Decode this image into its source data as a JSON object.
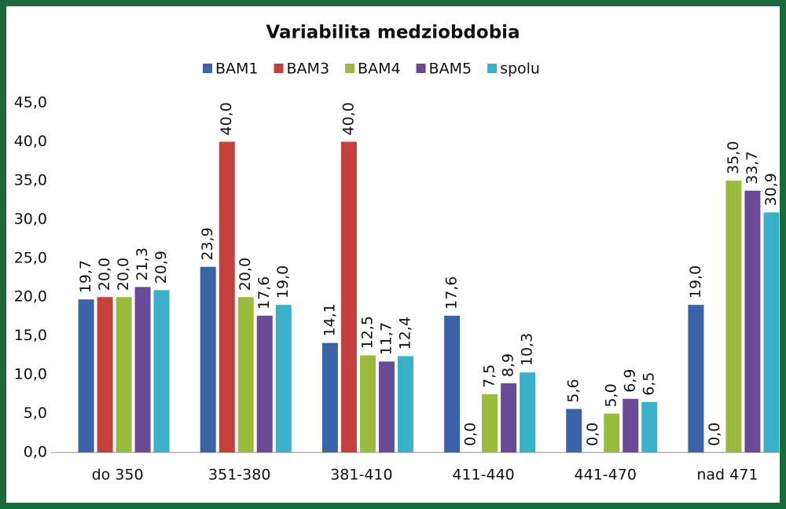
{
  "chart_data": {
    "type": "bar",
    "title": "Variabilita medziobdobia",
    "categories": [
      "do 350",
      "351-380",
      "381-410",
      "411-440",
      "441-470",
      "nad 471"
    ],
    "series": [
      {
        "name": "BAM1",
        "color": "#3b64a8",
        "values": [
          19.7,
          23.9,
          14.1,
          17.6,
          5.6,
          19.0
        ],
        "value_labels": [
          "19,7",
          "23,9",
          "14,1",
          "17,6",
          "5,6",
          "19,0"
        ]
      },
      {
        "name": "BAM3",
        "color": "#c4403b",
        "values": [
          20.0,
          40.0,
          40.0,
          0.0,
          0.0,
          0.0
        ],
        "value_labels": [
          "20,0",
          "40,0",
          "40,0",
          "0,0",
          "0,0",
          "0,0"
        ]
      },
      {
        "name": "BAM4",
        "color": "#9bbb3c",
        "values": [
          20.0,
          20.0,
          12.5,
          7.5,
          5.0,
          35.0
        ],
        "value_labels": [
          "20,0",
          "20,0",
          "12,5",
          "7,5",
          "5,0",
          "35,0"
        ]
      },
      {
        "name": "BAM5",
        "color": "#6b4a95",
        "values": [
          21.3,
          17.6,
          11.7,
          8.9,
          6.9,
          33.7
        ],
        "value_labels": [
          "21,3",
          "17,6",
          "11,7",
          "8,9",
          "6,9",
          "33,7"
        ]
      },
      {
        "name": "spolu",
        "color": "#3bb1c9",
        "values": [
          20.9,
          19.0,
          12.4,
          10.3,
          6.5,
          30.9
        ],
        "value_labels": [
          "20,9",
          "19,0",
          "12,4",
          "10,3",
          "6,5",
          "30,9"
        ]
      }
    ],
    "ylim": [
      0,
      45
    ],
    "yticks": [
      {
        "value": 0,
        "label": "0,0"
      },
      {
        "value": 5,
        "label": "5,0"
      },
      {
        "value": 10,
        "label": "10,0"
      },
      {
        "value": 15,
        "label": "15,0"
      },
      {
        "value": 20,
        "label": "20,0"
      },
      {
        "value": 25,
        "label": "25,0"
      },
      {
        "value": 30,
        "label": "30,0"
      },
      {
        "value": 35,
        "label": "35,0"
      },
      {
        "value": 40,
        "label": "40,0"
      },
      {
        "value": 45,
        "label": "45,0"
      }
    ],
    "grid": false
  }
}
